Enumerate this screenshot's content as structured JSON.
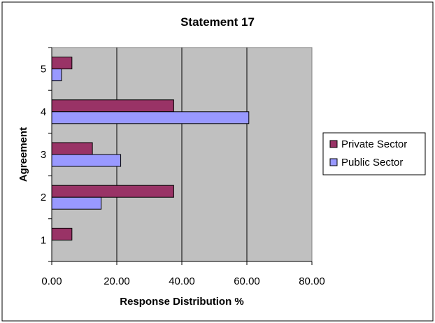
{
  "chart_data": {
    "type": "bar",
    "orientation": "horizontal",
    "title": "Statement 17",
    "xlabel": "Response Distribution %",
    "ylabel": "Agreement",
    "categories": [
      "1",
      "2",
      "3",
      "4",
      "5"
    ],
    "series": [
      {
        "name": "Private Sector",
        "color": "#993366",
        "values": [
          6.2,
          37.5,
          12.5,
          37.5,
          6.2
        ]
      },
      {
        "name": "Public Sector",
        "color": "#9999ff",
        "values": [
          0,
          15.2,
          21.2,
          60.6,
          3.0
        ]
      }
    ],
    "xlim": [
      0,
      80
    ],
    "xticks": [
      "0.00",
      "20.00",
      "40.00",
      "60.00",
      "80.00"
    ],
    "grid": true,
    "plot_background": "#c0c0c0",
    "legend_position": "right"
  }
}
